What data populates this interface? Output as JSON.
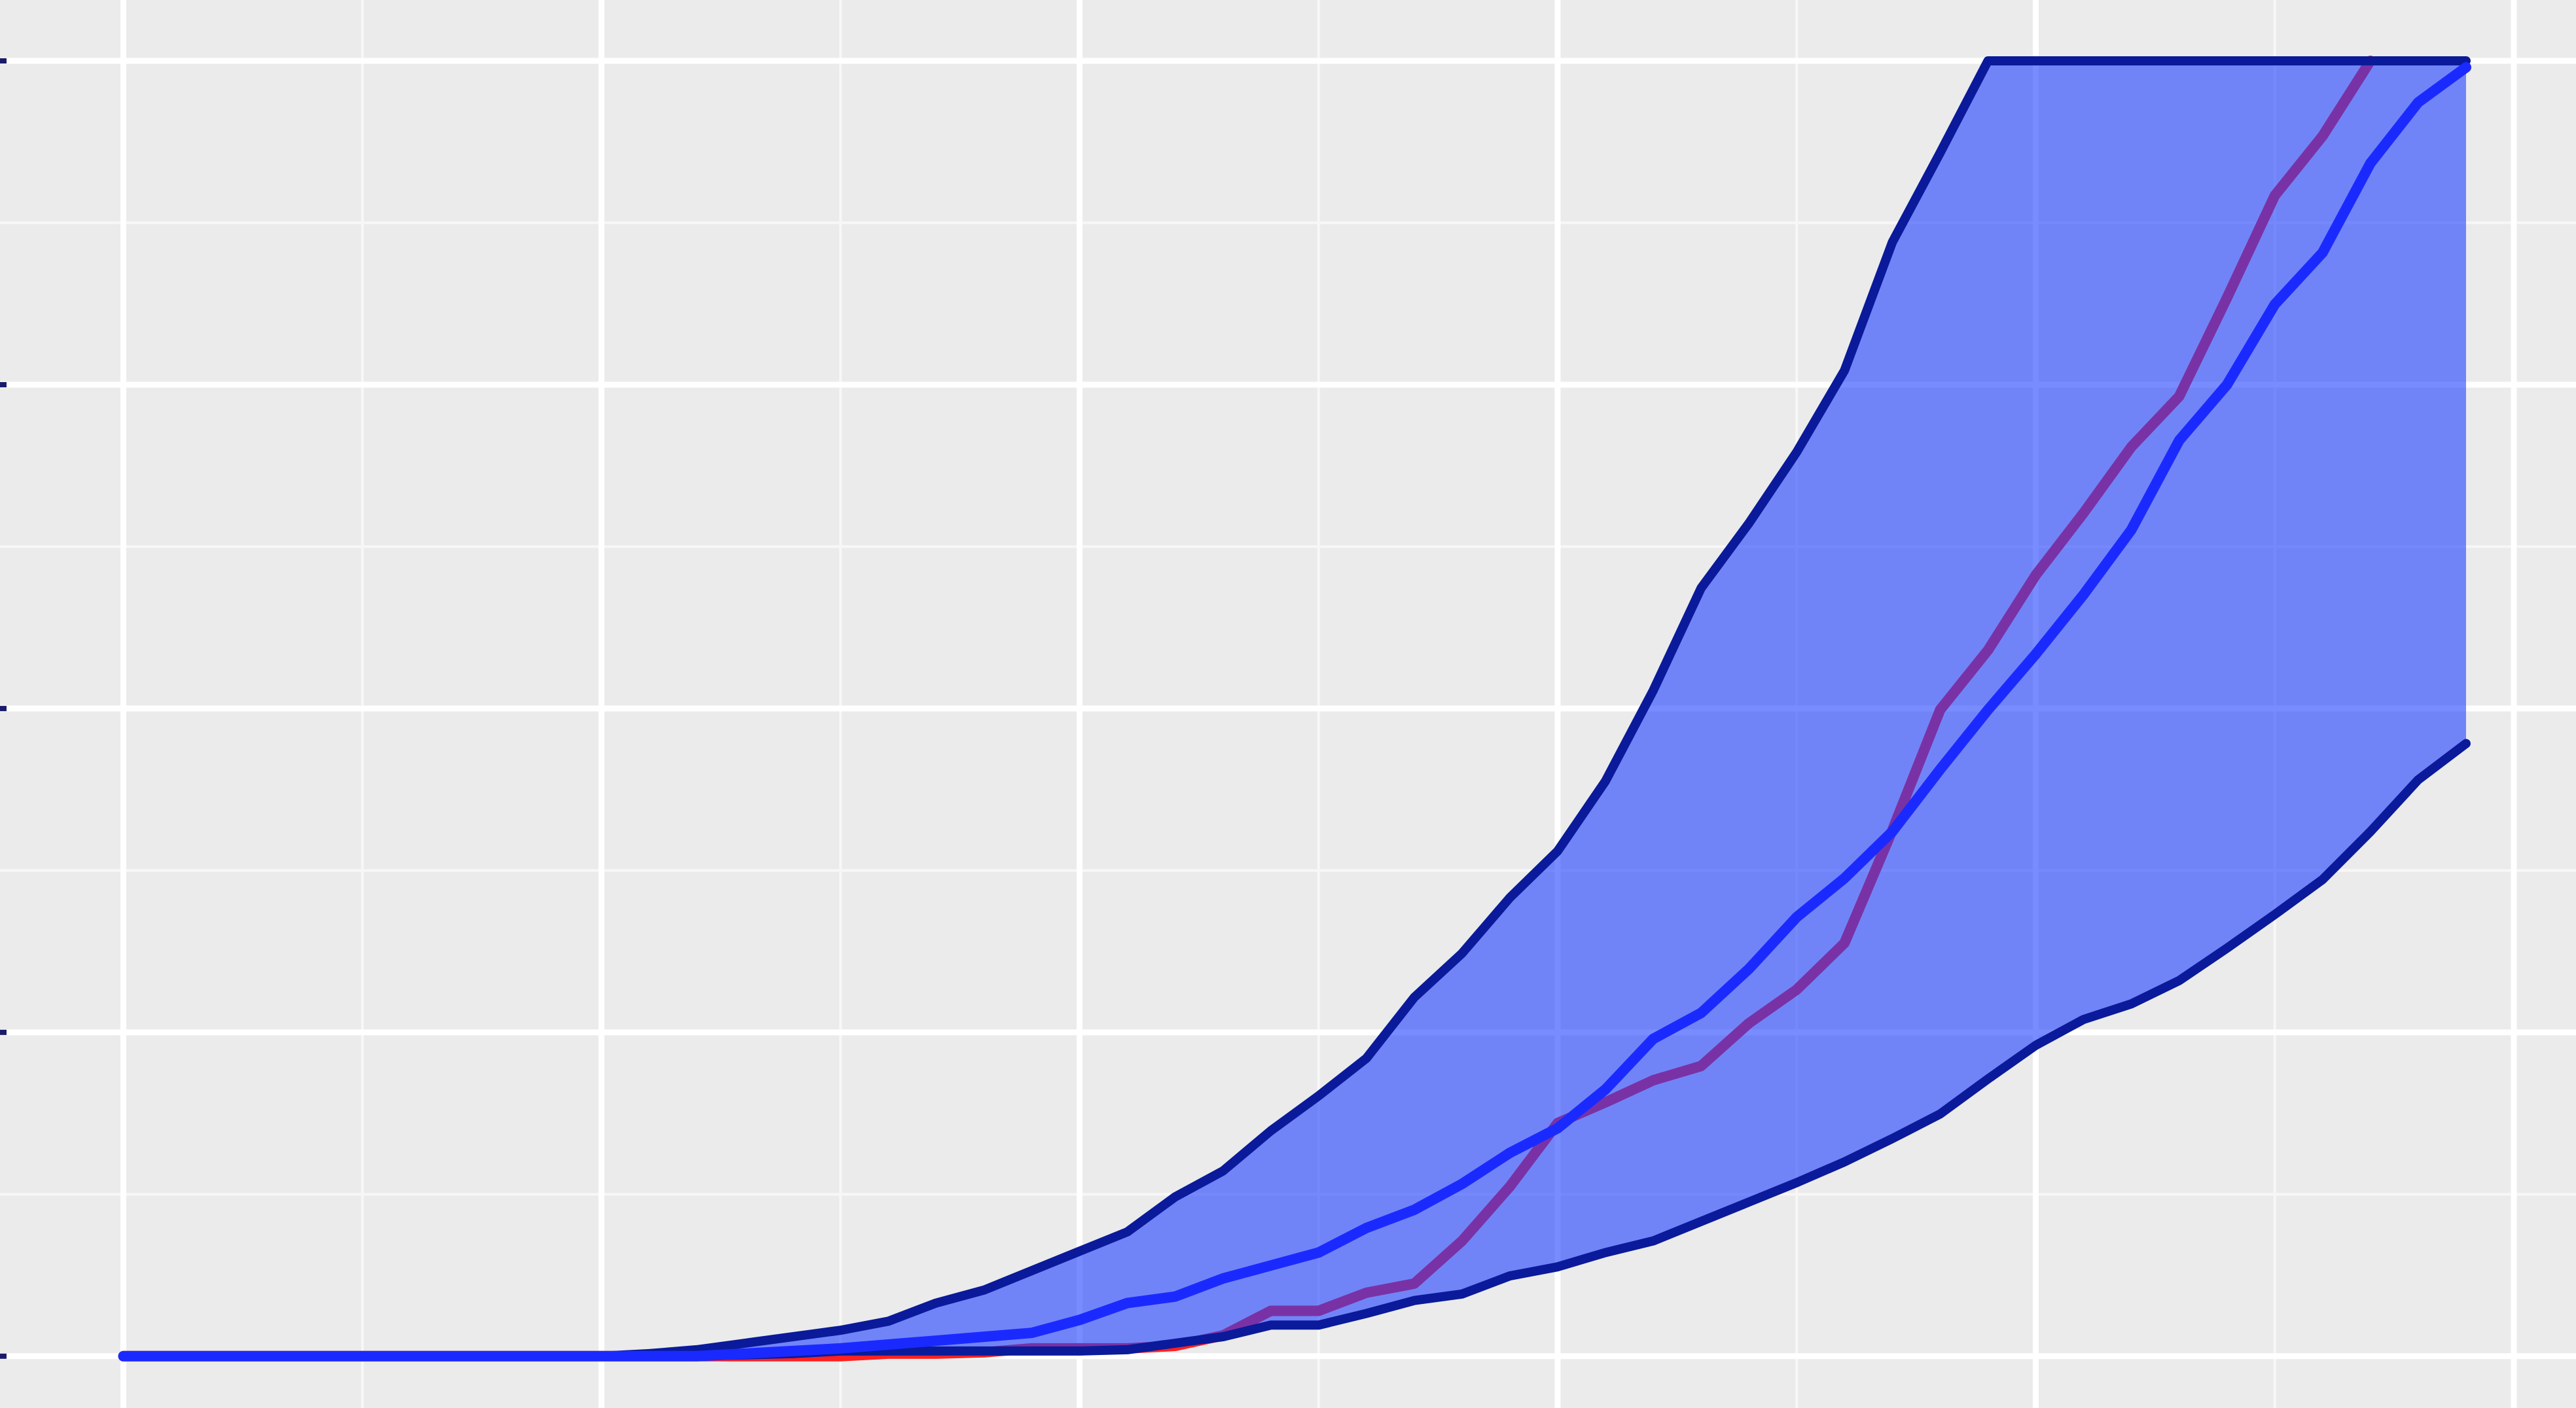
{
  "chart_data": {
    "type": "line",
    "x": [
      0,
      1,
      2,
      3,
      4,
      5,
      6,
      7,
      8,
      9,
      10,
      11,
      12,
      13,
      14,
      15,
      16,
      17,
      18,
      19,
      20,
      21,
      22,
      23,
      24,
      25,
      26,
      27,
      28,
      29,
      30,
      31,
      32,
      33,
      34,
      35,
      36,
      37,
      38,
      39,
      40,
      41,
      42,
      43,
      44,
      45,
      46,
      47,
      48,
      49
    ],
    "band": {
      "color": "#2040ff",
      "edge_color": "#0a1a9a",
      "upper": [
        0,
        0,
        0,
        0,
        0,
        0,
        0,
        0,
        0,
        0,
        0,
        0.002,
        0.005,
        0.01,
        0.015,
        0.02,
        0.027,
        0.041,
        0.051,
        0.066,
        0.081,
        0.096,
        0.123,
        0.143,
        0.174,
        0.201,
        0.23,
        0.277,
        0.311,
        0.354,
        0.39,
        0.444,
        0.514,
        0.593,
        0.643,
        0.698,
        0.761,
        0.86,
        0.929,
        1,
        1,
        1,
        1,
        1,
        1,
        1,
        1,
        1,
        1,
        1
      ],
      "lower": [
        0,
        0,
        0,
        0,
        0,
        0,
        0,
        0,
        0,
        0,
        0,
        0,
        0,
        0.001,
        0.002,
        0.004,
        0.004,
        0.004,
        0.004,
        0.004,
        0.004,
        0.005,
        0.01,
        0.015,
        0.024,
        0.024,
        0.033,
        0.043,
        0.048,
        0.062,
        0.069,
        0.08,
        0.089,
        0.104,
        0.119,
        0.134,
        0.15,
        0.168,
        0.187,
        0.214,
        0.24,
        0.26,
        0.272,
        0.29,
        0.315,
        0.341,
        0.368,
        0.405,
        0.445,
        0.473
      ]
    },
    "series": [
      {
        "color": "#ff2020",
        "below_band": true,
        "values": [
          0,
          0,
          0,
          0,
          0,
          0,
          0,
          0,
          0,
          0,
          0,
          0,
          0,
          0,
          0,
          0,
          0.002,
          0.002,
          0.003,
          0.006,
          0.006,
          0.006,
          0.008,
          0.016,
          0.035,
          0.035,
          0.049,
          0.056,
          0.089,
          0.131,
          0.18,
          0.196,
          0.213,
          0.224,
          0.257,
          0.283,
          0.319,
          0.406,
          0.499,
          0.545,
          0.603,
          0.651,
          0.702,
          0.741,
          0.817,
          0.896,
          0.942,
          1,
          null,
          null
        ]
      },
      {
        "color": "#1a2aff",
        "below_band": false,
        "values": [
          0,
          0,
          0,
          0,
          0,
          0,
          0,
          0,
          0,
          0,
          0,
          0,
          0,
          0.002,
          0.004,
          0.006,
          0.009,
          0.012,
          0.015,
          0.018,
          0.028,
          0.041,
          0.046,
          0.06,
          0.07,
          0.08,
          0.099,
          0.113,
          0.133,
          0.157,
          0.176,
          0.206,
          0.245,
          0.265,
          0.299,
          0.339,
          0.369,
          0.405,
          0.453,
          0.499,
          0.542,
          0.588,
          0.638,
          0.707,
          0.75,
          0.812,
          0.852,
          0.921,
          0.968,
          0.995
        ]
      }
    ],
    "xlim": [
      -2.58,
      51.3
    ],
    "ylim": [
      -0.04,
      1.047
    ],
    "xticks": [
      0,
      10,
      20,
      30,
      40,
      50
    ],
    "xminorticks": [
      5,
      15,
      25,
      35,
      45
    ],
    "yticks": [
      0,
      0.25,
      0.5,
      0.75,
      1
    ],
    "yminorticks": [
      0.125,
      0.375,
      0.625,
      0.875
    ],
    "grid": true
  }
}
